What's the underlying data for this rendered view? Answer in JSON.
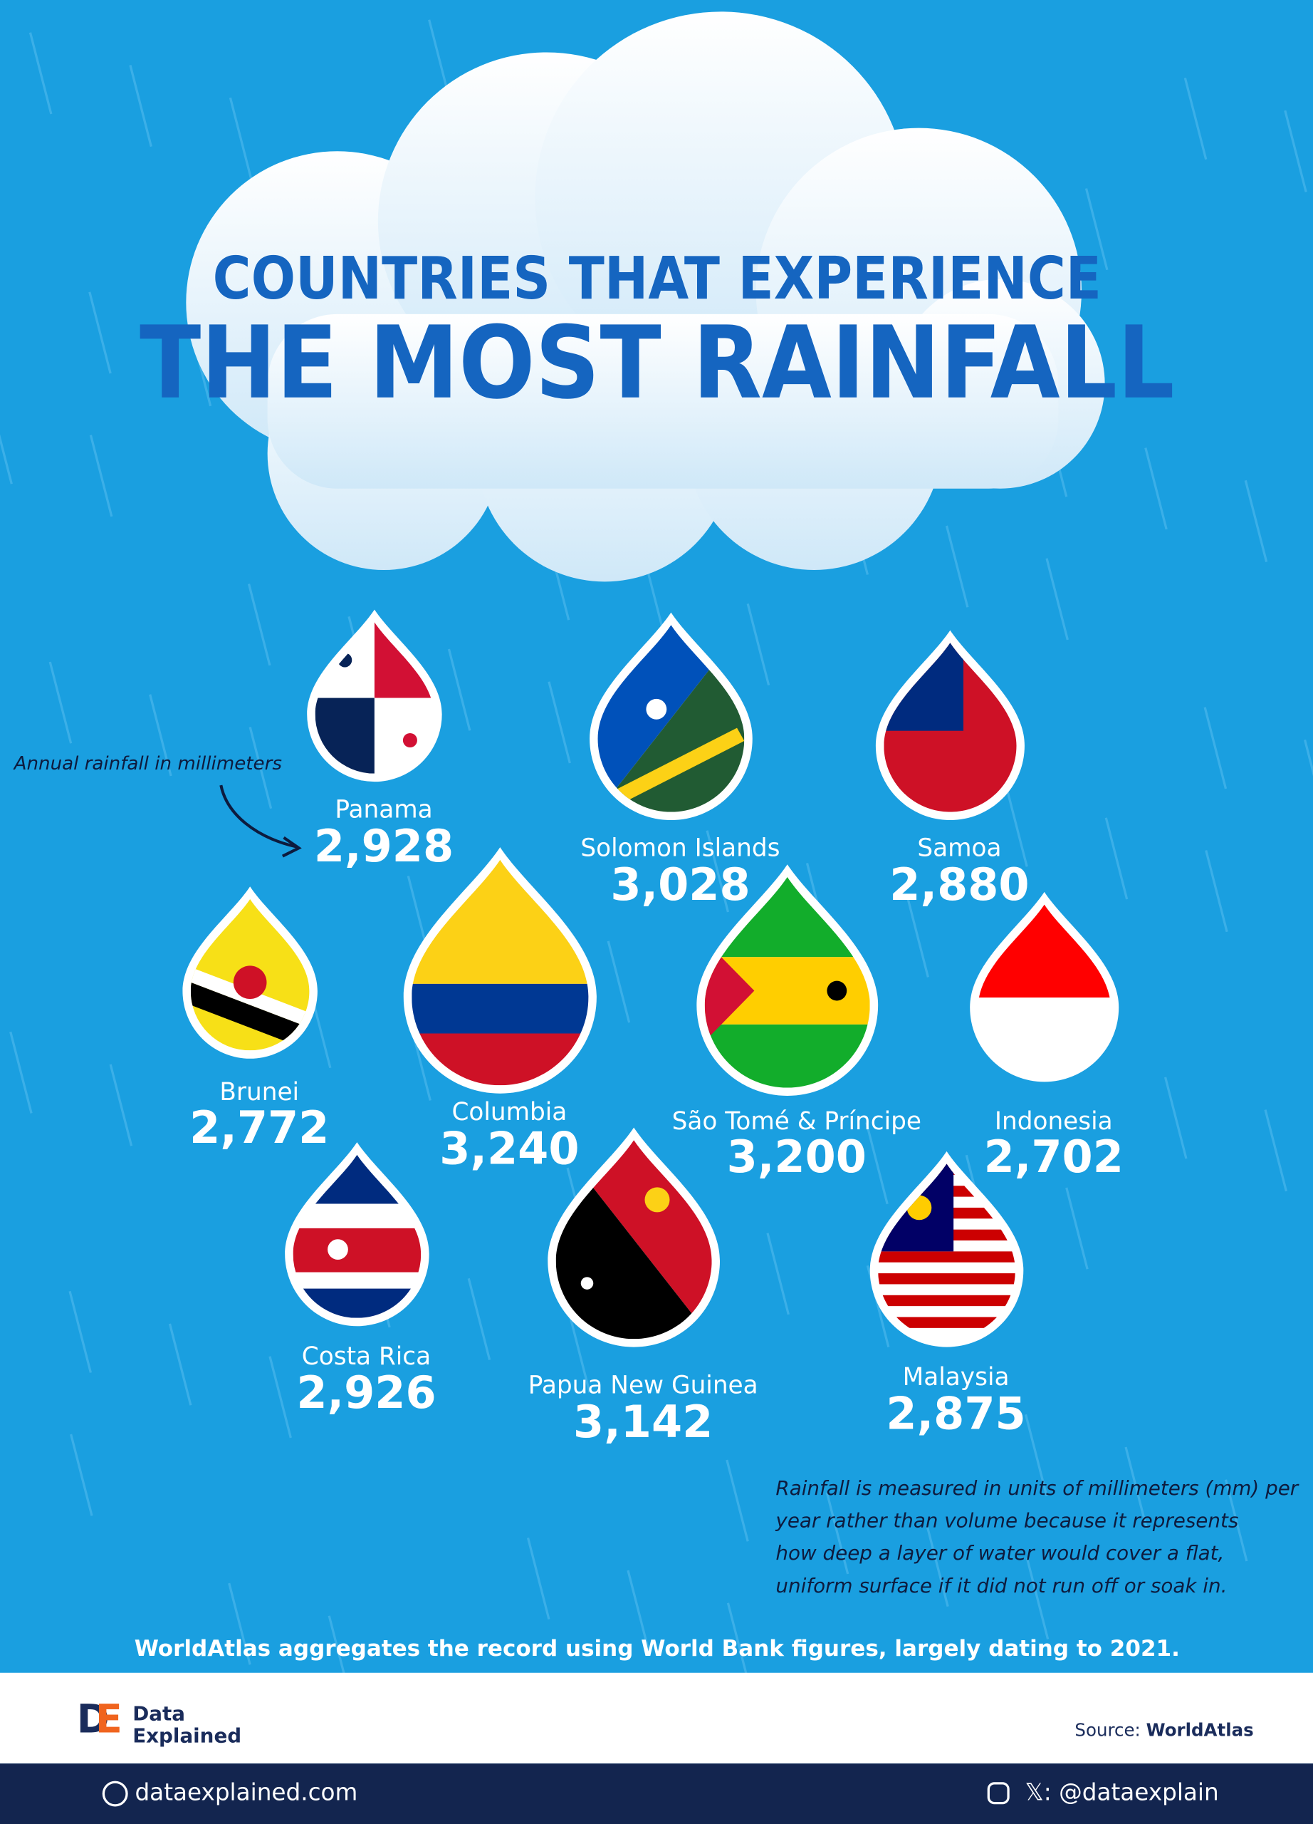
{
  "header": {
    "title_line1": "COUNTRIES THAT EXPERIENCE",
    "title_line2": "THE MOST RAINFALL"
  },
  "annotation": "Annual rainfall in millimeters",
  "items": [
    {
      "country": "Panama",
      "rainfall": "2,928"
    },
    {
      "country": "Solomon Islands",
      "rainfall": "3,028"
    },
    {
      "country": "Samoa",
      "rainfall": "2,880"
    },
    {
      "country": "Brunei",
      "rainfall": "2,772"
    },
    {
      "country": "Columbia",
      "rainfall": "3,240"
    },
    {
      "country": "São Tomé & Príncipe",
      "rainfall": "3,200"
    },
    {
      "country": "Indonesia",
      "rainfall": "2,702"
    },
    {
      "country": "Costa Rica",
      "rainfall": "2,926"
    },
    {
      "country": "Papua New Guinea",
      "rainfall": "3,142"
    },
    {
      "country": "Malaysia",
      "rainfall": "2,875"
    }
  ],
  "note": [
    "Rainfall is measured in units of millimeters (mm) per",
    "year rather than volume because it represents",
    "how deep a layer of water would cover a flat,",
    "uniform surface if it did not run off or soak in."
  ],
  "footer_note": "WorldAtlas aggregates the record using World Bank figures, largely dating to 2021.",
  "brand": {
    "line1": "Data",
    "line2": "Explained"
  },
  "source": {
    "label": "Source:",
    "name": "WorldAtlas"
  },
  "social": {
    "website": "dataexplained.com",
    "handle": "𝕏: @dataexplain"
  }
}
